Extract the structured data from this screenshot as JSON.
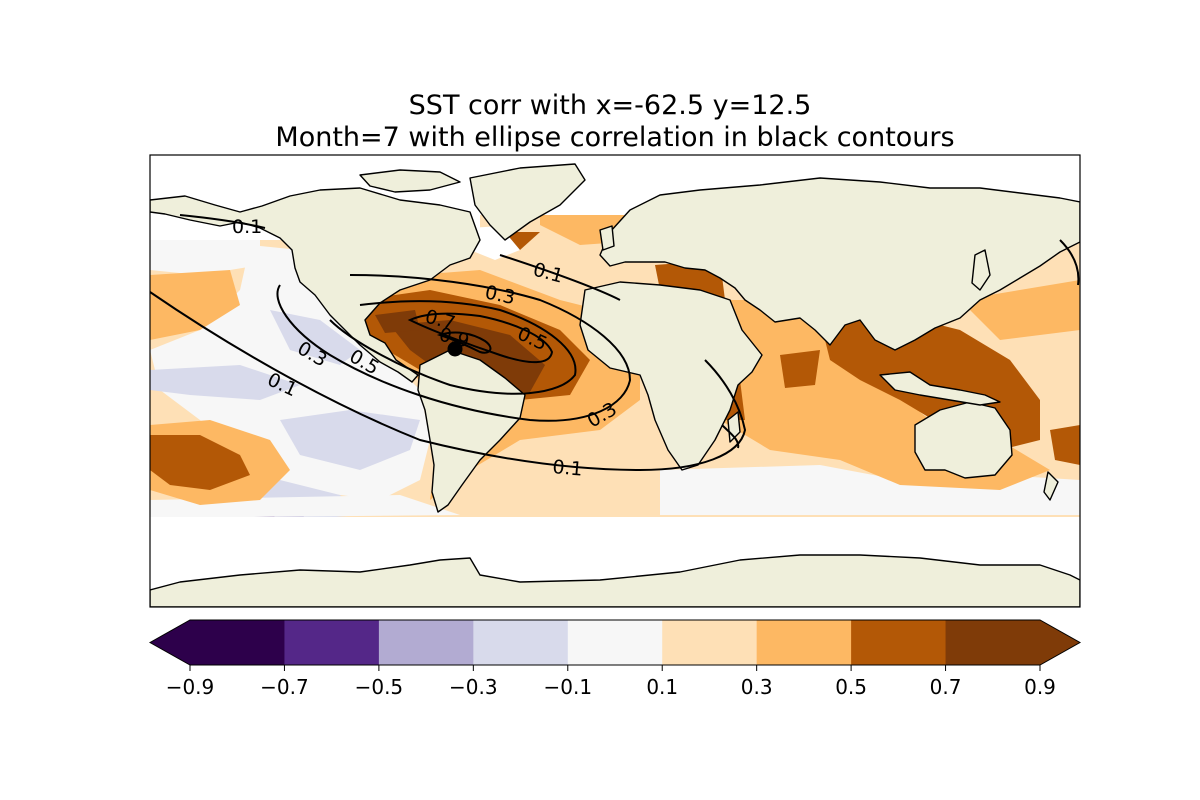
{
  "title_line1": "SST corr with x=-62.5 y=12.5",
  "title_line2": "Month=7 with ellipse correlation in black contours",
  "colorbar": {
    "levels": [
      -0.9,
      -0.7,
      -0.5,
      -0.3,
      -0.1,
      0.1,
      0.3,
      0.5,
      0.7,
      0.9
    ],
    "tick_labels": [
      "−0.9",
      "−0.7",
      "−0.5",
      "−0.3",
      "−0.1",
      "0.1",
      "0.3",
      "0.5",
      "0.7",
      "0.9"
    ],
    "colors": [
      "#2d004b",
      "#542788",
      "#b2abd2",
      "#d8daeb",
      "#f7f7f7",
      "#fee0b6",
      "#fdb863",
      "#b35806",
      "#7f3b08"
    ],
    "extend": "both"
  },
  "contour_labels": [
    "0.1",
    "0.1",
    "0.1",
    "0.1",
    "0.3",
    "0.3",
    "0.3",
    "0.5",
    "0.5",
    "0.7",
    "0.9"
  ],
  "marker": {
    "lon": -62.5,
    "lat": 12.5
  }
}
